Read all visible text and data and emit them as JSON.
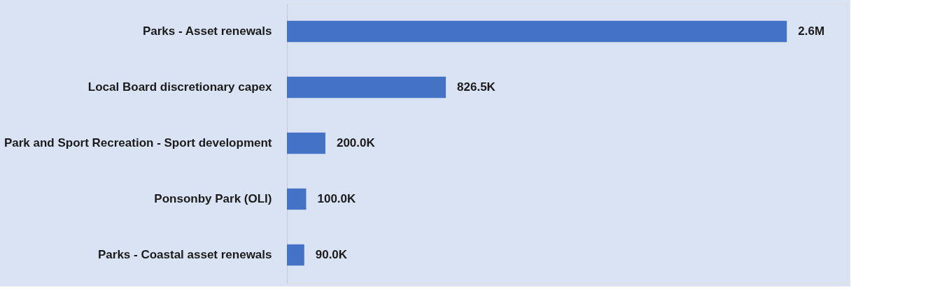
{
  "chart_data": {
    "type": "bar",
    "orientation": "horizontal",
    "categories": [
      "Parks - Asset renewals",
      "Local Board discretionary capex",
      "Park and Sport Recreation - Sport development",
      "Ponsonby Park (OLI)",
      "Parks - Coastal asset renewals"
    ],
    "values": [
      2600000,
      826500,
      200000,
      100000,
      90000
    ],
    "value_labels": [
      "2.6M",
      "826.5K",
      "200.0K",
      "100.0K",
      "90.0K"
    ],
    "color": "#4472c4",
    "grid": false
  }
}
